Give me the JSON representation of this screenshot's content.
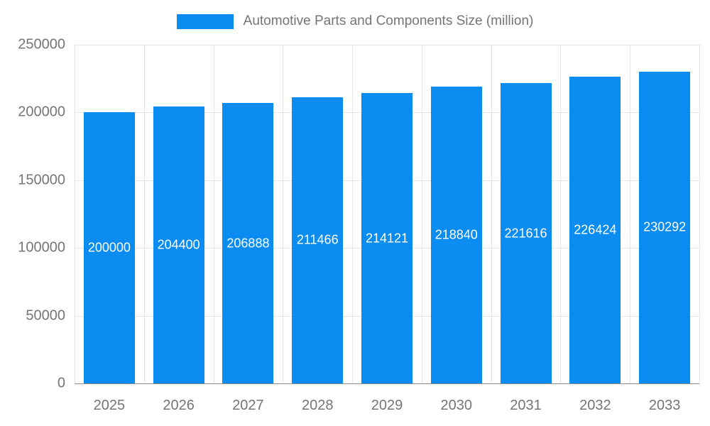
{
  "chart_data": {
    "type": "bar",
    "title": "Automotive Parts and Components Size (million)",
    "categories": [
      "2025",
      "2026",
      "2027",
      "2028",
      "2029",
      "2030",
      "2031",
      "2032",
      "2033"
    ],
    "values": [
      200000,
      204400,
      206888,
      211466,
      214121,
      218840,
      221616,
      226424,
      230292
    ],
    "xlabel": "",
    "ylabel": "",
    "ylim": [
      0,
      250000
    ],
    "yticks": [
      0,
      50000,
      100000,
      150000,
      200000,
      250000
    ],
    "grid": true,
    "legend_position": "top-center",
    "colors": {
      "bar": "#0b8cf0",
      "bar_label_text": "#ffffff",
      "axis_text": "#757575",
      "gridline": "#e6e6e6",
      "baseline": "#8a8a8a",
      "background": "#ffffff"
    }
  }
}
